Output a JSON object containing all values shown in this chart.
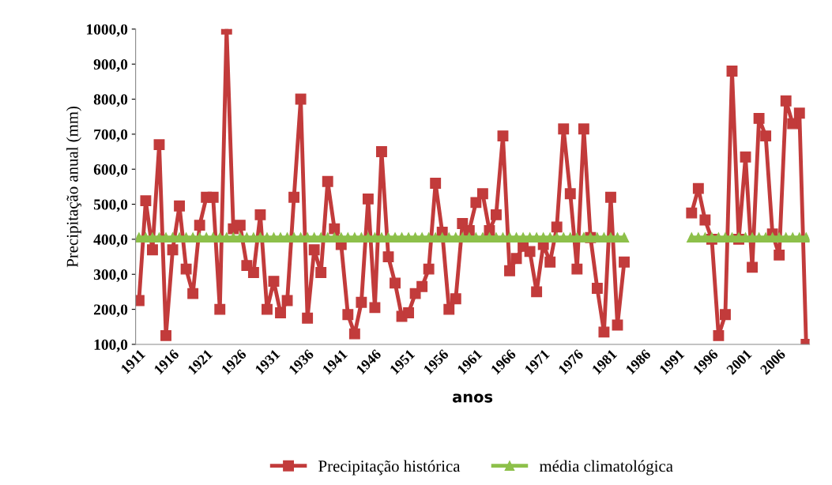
{
  "chart_data": {
    "type": "line",
    "xlabel": "anos",
    "ylabel": "Precipitação anual (mm)",
    "categories": [
      "1911",
      null,
      null,
      null,
      null,
      "1916",
      null,
      null,
      null,
      null,
      "1921",
      null,
      null,
      null,
      null,
      "1926",
      null,
      null,
      null,
      null,
      "1931",
      null,
      null,
      null,
      null,
      "1936",
      null,
      null,
      null,
      null,
      "1941",
      null,
      null,
      null,
      null,
      "1946",
      null,
      null,
      null,
      null,
      "1951",
      null,
      null,
      null,
      null,
      "1956",
      null,
      null,
      null,
      null,
      "1961",
      null,
      null,
      null,
      null,
      "1966",
      null,
      null,
      null,
      null,
      "1971",
      null,
      null,
      null,
      null,
      "1976",
      null,
      null,
      null,
      null,
      "1981",
      null,
      null,
      null,
      null,
      "1986",
      null,
      null,
      null,
      null,
      "1991",
      null,
      null,
      null,
      null,
      "1996",
      null,
      null,
      null,
      null,
      "2001",
      null,
      null,
      null,
      null,
      "2006",
      null,
      null,
      null,
      null
    ],
    "series": [
      {
        "name": "Precipitação histórica",
        "color": "#c23b3b",
        "marker": "square",
        "values": [
          225,
          510,
          370,
          670,
          125,
          370,
          495,
          315,
          245,
          440,
          520,
          520,
          200,
          1000,
          430,
          440,
          325,
          305,
          470,
          200,
          280,
          190,
          225,
          520,
          800,
          175,
          370,
          305,
          565,
          430,
          385,
          185,
          130,
          220,
          515,
          205,
          650,
          350,
          275,
          180,
          190,
          245,
          265,
          315,
          560,
          420,
          200,
          230,
          445,
          425,
          505,
          530,
          425,
          470,
          695,
          310,
          345,
          380,
          365,
          250,
          385,
          335,
          435,
          715,
          530,
          315,
          715,
          405,
          260,
          135,
          520,
          155,
          335,
          null,
          null,
          null,
          null,
          null,
          null,
          null,
          null,
          null,
          475,
          545,
          455,
          400,
          125,
          185,
          880,
          400,
          635,
          320,
          745,
          695,
          415,
          355,
          795,
          730,
          760,
          100
        ]
      },
      {
        "name": "média climatológica",
        "color": "#8dc04a",
        "marker": "triangle",
        "values": [
          405,
          405,
          405,
          405,
          405,
          405,
          405,
          405,
          405,
          405,
          405,
          405,
          405,
          405,
          405,
          405,
          405,
          405,
          405,
          405,
          405,
          405,
          405,
          405,
          405,
          405,
          405,
          405,
          405,
          405,
          405,
          405,
          405,
          405,
          405,
          405,
          405,
          405,
          405,
          405,
          405,
          405,
          405,
          405,
          405,
          405,
          405,
          405,
          405,
          405,
          405,
          405,
          405,
          405,
          405,
          405,
          405,
          405,
          405,
          405,
          405,
          405,
          405,
          405,
          405,
          405,
          405,
          405,
          405,
          405,
          405,
          405,
          405,
          null,
          null,
          null,
          null,
          null,
          null,
          null,
          null,
          null,
          405,
          405,
          405,
          405,
          405,
          405,
          405,
          405,
          405,
          405,
          405,
          405,
          405,
          405,
          405,
          405,
          405,
          405
        ]
      }
    ],
    "ylim": [
      100,
      1000
    ],
    "yticks": [
      {
        "value": 100,
        "label": "100,0"
      },
      {
        "value": 200,
        "label": "200,0"
      },
      {
        "value": 300,
        "label": "300,0"
      },
      {
        "value": 400,
        "label": "400,0"
      },
      {
        "value": 500,
        "label": "500,0"
      },
      {
        "value": 600,
        "label": "600,0"
      },
      {
        "value": 700,
        "label": "700,0"
      },
      {
        "value": 800,
        "label": "800,0"
      },
      {
        "value": 900,
        "label": "900,0"
      },
      {
        "value": 1000,
        "label": "1000,0"
      }
    ],
    "grid": false,
    "legend": "bottom",
    "line_style": "solid"
  }
}
